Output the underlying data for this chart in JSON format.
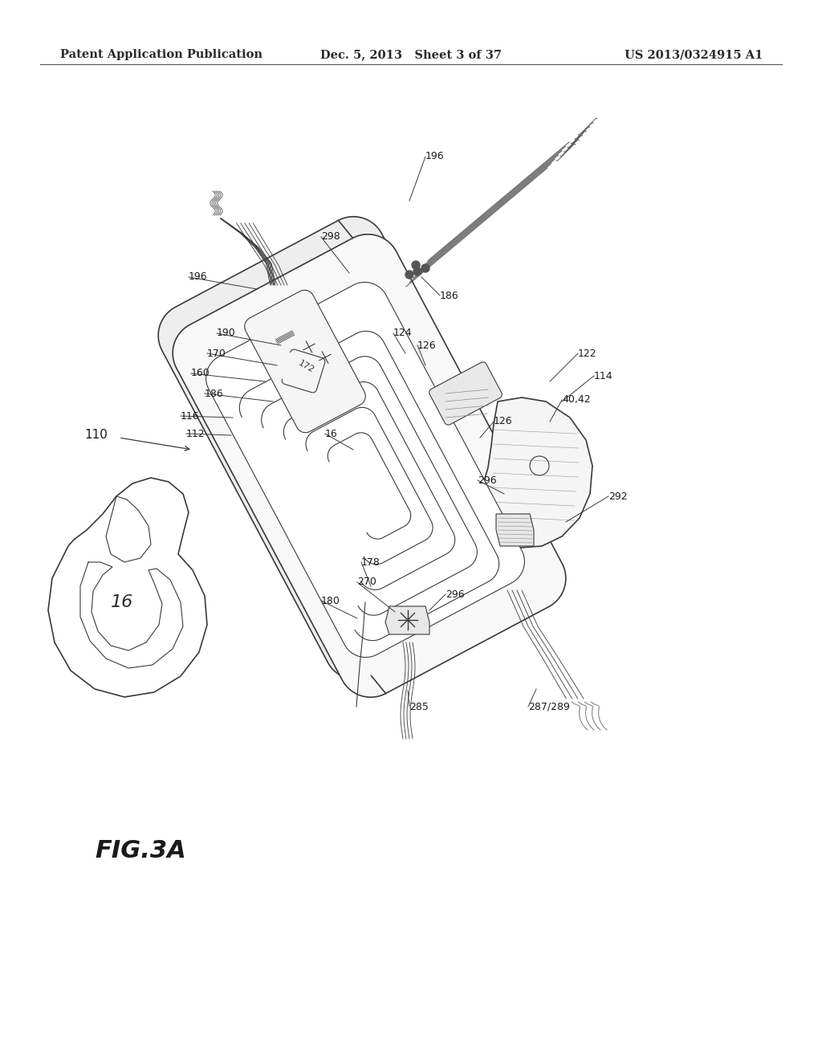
{
  "background_color": "#ffffff",
  "header_left": "Patent Application Publication",
  "header_center": "Dec. 5, 2013   Sheet 3 of 37",
  "header_right": "US 2013/0324915 A1",
  "figure_label": "FIG.3A",
  "title_fontsize": 10.5,
  "label_fontsize": 9,
  "fig_label_fontsize": 18,
  "line_color": "#3a3a3a",
  "light_gray": "#aaaaaa"
}
